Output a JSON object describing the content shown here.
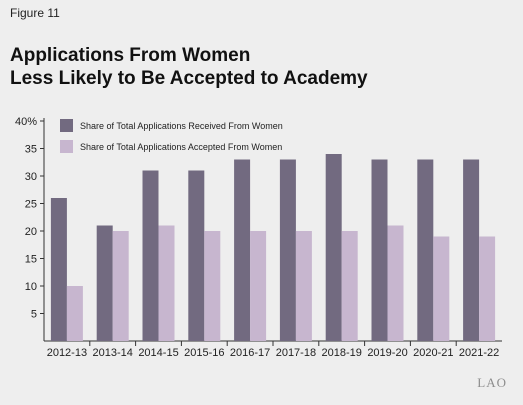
{
  "figure_label": "Figure 11",
  "title_line1": "Applications From Women",
  "title_line2": "Less Likely to Be Accepted to Academy",
  "watermark": "LAO",
  "colors": {
    "received": "#726a80",
    "accepted": "#c7b6cf",
    "axis": "#333333",
    "background": "#eeeeee"
  },
  "chart_data": {
    "type": "bar",
    "categories": [
      "2012-13",
      "2013-14",
      "2014-15",
      "2015-16",
      "2016-17",
      "2017-18",
      "2018-19",
      "2019-20",
      "2020-21",
      "2021-22"
    ],
    "series": [
      {
        "name": "Share of Total Applications Received From Women",
        "values": [
          26,
          21,
          31,
          31,
          33,
          33,
          34,
          33,
          33,
          33
        ]
      },
      {
        "name": "Share of Total Applications Accepted From Women",
        "values": [
          10,
          20,
          21,
          20,
          20,
          20,
          20,
          21,
          19,
          19
        ]
      }
    ],
    "ylim": [
      0,
      40
    ],
    "yticks": [
      5,
      10,
      15,
      20,
      25,
      30,
      35,
      40
    ],
    "ytick_labels": [
      "5",
      "10",
      "15",
      "20",
      "25",
      "30",
      "35",
      "40%"
    ],
    "legend_position": "top-left",
    "grid": false
  }
}
